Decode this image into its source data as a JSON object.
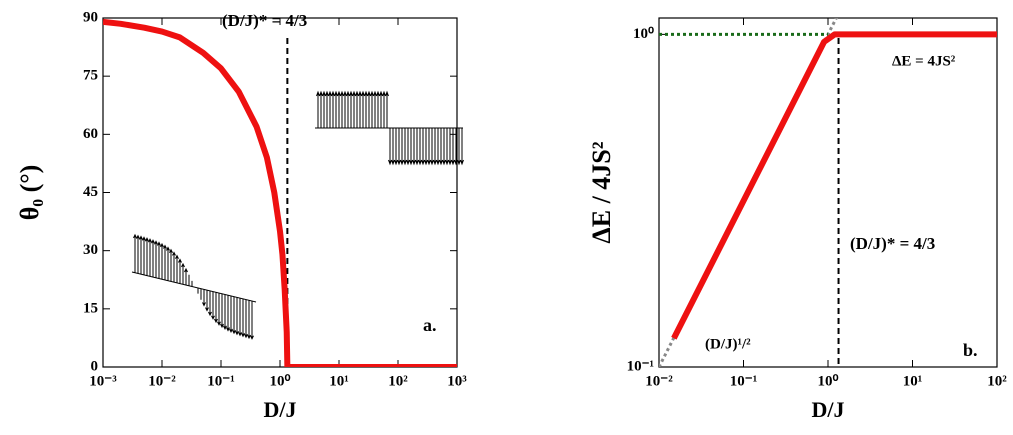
{
  "chart_data": [
    {
      "type": "line",
      "xlabel": "D/J",
      "ylabel": "θ₀ (°)",
      "xscale": "log",
      "xlim": [
        0.001,
        1000
      ],
      "xticks": [
        {
          "value": 0.001,
          "label": "10⁻³"
        },
        {
          "value": 0.01,
          "label": "10⁻²"
        },
        {
          "value": 0.1,
          "label": "10⁻¹"
        },
        {
          "value": 1,
          "label": "10⁰"
        },
        {
          "value": 10,
          "label": "10¹"
        },
        {
          "value": 100,
          "label": "10²"
        },
        {
          "value": 1000,
          "label": "10³"
        }
      ],
      "ylim": [
        0,
        90
      ],
      "yticks": [
        0,
        15,
        30,
        45,
        60,
        75,
        90
      ],
      "vline": 1.333,
      "annotations": [
        {
          "text": "(D/J)* = 4/3",
          "color": "#000000"
        },
        {
          "text": "a.",
          "color": "#000000"
        }
      ],
      "series": [
        {
          "color": "#ee1111",
          "style": "solid",
          "x": [
            0.001,
            0.002,
            0.005,
            0.01,
            0.02,
            0.05,
            0.1,
            0.2,
            0.4,
            0.6,
            0.8,
            1.0,
            1.1,
            1.2,
            1.3,
            1.333,
            10,
            100,
            1000
          ],
          "values": [
            89,
            88.5,
            87.5,
            86.5,
            85,
            81,
            77,
            71,
            62,
            54,
            45,
            35,
            29,
            20,
            9,
            0,
            0,
            0,
            0
          ]
        }
      ]
    },
    {
      "type": "line",
      "xlabel": "D/J",
      "ylabel": "ΔE / 4JS²",
      "xscale": "log",
      "yscale": "log",
      "xlim": [
        0.01,
        100
      ],
      "xticks": [
        {
          "value": 0.01,
          "label": "10⁻²"
        },
        {
          "value": 0.1,
          "label": "10⁻¹"
        },
        {
          "value": 1,
          "label": "10⁰"
        },
        {
          "value": 10,
          "label": "10¹"
        },
        {
          "value": 100,
          "label": "10²"
        }
      ],
      "ylim": [
        0.1,
        1.12
      ],
      "yticks": [
        {
          "value": 0.1,
          "label": "10⁻¹"
        },
        {
          "value": 1,
          "label": "10⁰"
        }
      ],
      "vline": 1.333,
      "annotations": [
        {
          "text": "ΔE = 4JS²",
          "color": "#1a6b1a"
        },
        {
          "text": "(D/J)* = 4/3",
          "color": "#000000"
        },
        {
          "text": "(D/J)¹/²",
          "color": "#8b7d6b"
        },
        {
          "text": "b.",
          "color": "#000000"
        }
      ],
      "series": [
        {
          "color": "#888888",
          "style": "dotted",
          "x": [
            0.01,
            1.3
          ],
          "values": [
            0.1,
            1.14
          ]
        },
        {
          "color": "#1a6b1a",
          "style": "dotted",
          "x": [
            0.01,
            1
          ],
          "values": [
            1,
            1
          ]
        },
        {
          "color": "#ee1111",
          "style": "solid",
          "x": [
            0.015,
            0.9,
            1.2,
            100
          ],
          "values": [
            0.122,
            0.95,
            1,
            1
          ]
        }
      ]
    }
  ]
}
